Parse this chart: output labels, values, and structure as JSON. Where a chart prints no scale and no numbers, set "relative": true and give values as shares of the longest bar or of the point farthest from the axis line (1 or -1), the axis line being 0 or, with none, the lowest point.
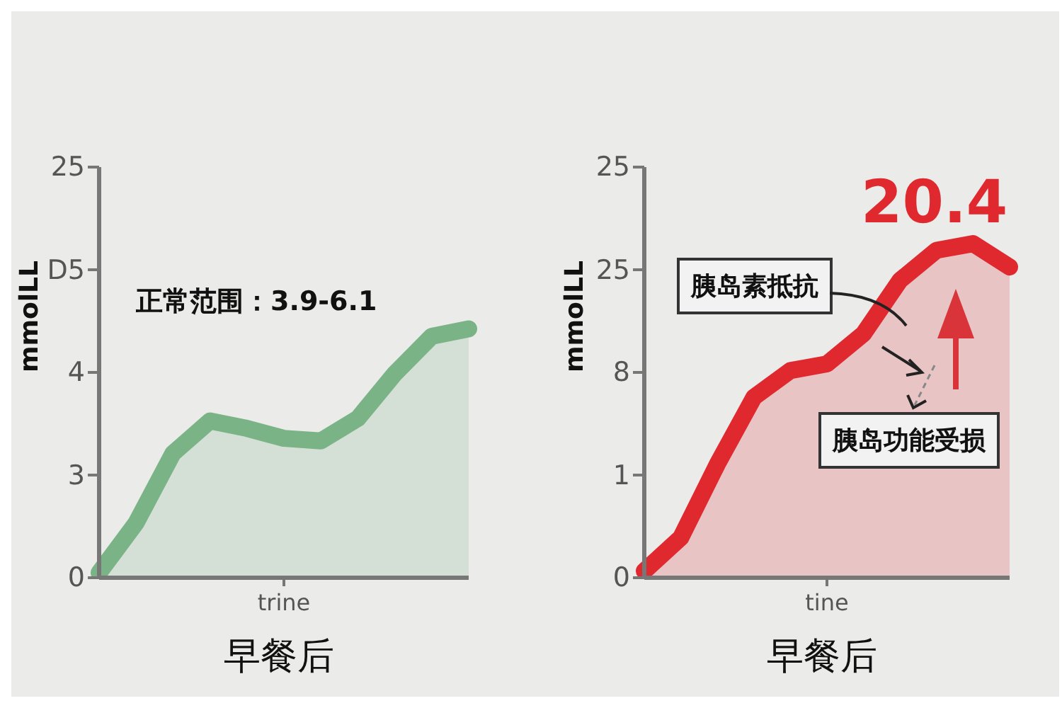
{
  "chart_data": [
    {
      "type": "area",
      "relative": true,
      "xlabel": "早餐后",
      "ylabel": "mmolLL",
      "categories": [
        null,
        null,
        null,
        null,
        null,
        null,
        null,
        null,
        null,
        null,
        null
      ],
      "series": [
        {
          "color": "#7ab386",
          "values": [
            0.02,
            0.22,
            0.5,
            0.63,
            0.6,
            0.56,
            0.55,
            0.64,
            0.82,
            0.97,
            1
          ]
        }
      ],
      "annotations": [
        "正常范围：3.9-6.1",
        "25",
        "D5",
        "4",
        "3",
        "0",
        "trine"
      ]
    },
    {
      "type": "area",
      "relative": true,
      "xlabel": "早餐后",
      "ylabel": "mmolLL",
      "categories": [
        null,
        null,
        null,
        null,
        null,
        null,
        null,
        null,
        null,
        null,
        null
      ],
      "series": [
        {
          "color": "#e0292f",
          "values": [
            0.02,
            0.12,
            0.34,
            0.54,
            0.62,
            0.64,
            0.73,
            0.89,
            0.98,
            1,
            0.93
          ]
        }
      ],
      "annotations": [
        "20.4",
        "胰岛素抵抗",
        "胰岛功能受损",
        "25",
        "25",
        "8",
        "1",
        "0",
        "tine"
      ]
    }
  ]
}
